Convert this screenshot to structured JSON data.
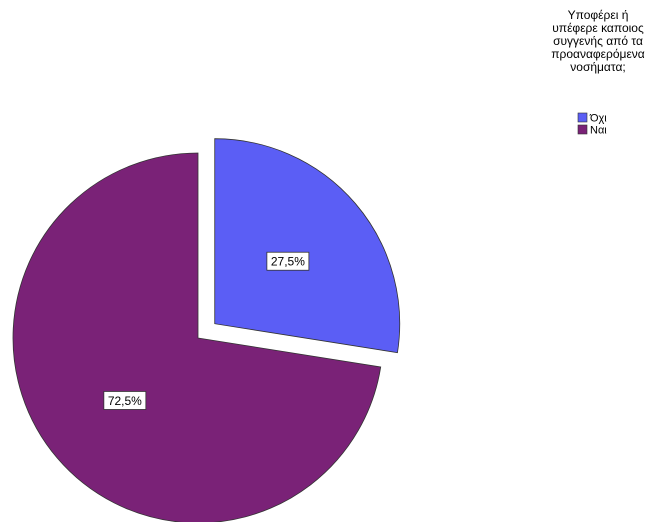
{
  "chart_data": {
    "type": "pie",
    "legend": {
      "title_lines": [
        "Υποφέρει ή",
        "υπέφερε καποιος",
        "συγγενής από τα",
        "προαναφερόμενα",
        "νοσήματα;"
      ],
      "position": "top-right"
    },
    "slices": [
      {
        "label": "Όχι",
        "value": 27.5,
        "data_label": "27,5%",
        "color": "#5b5ef5",
        "exploded": true
      },
      {
        "label": "Ναι",
        "value": 72.5,
        "data_label": "72,5%",
        "color": "#7a2277",
        "exploded": false
      }
    ]
  }
}
